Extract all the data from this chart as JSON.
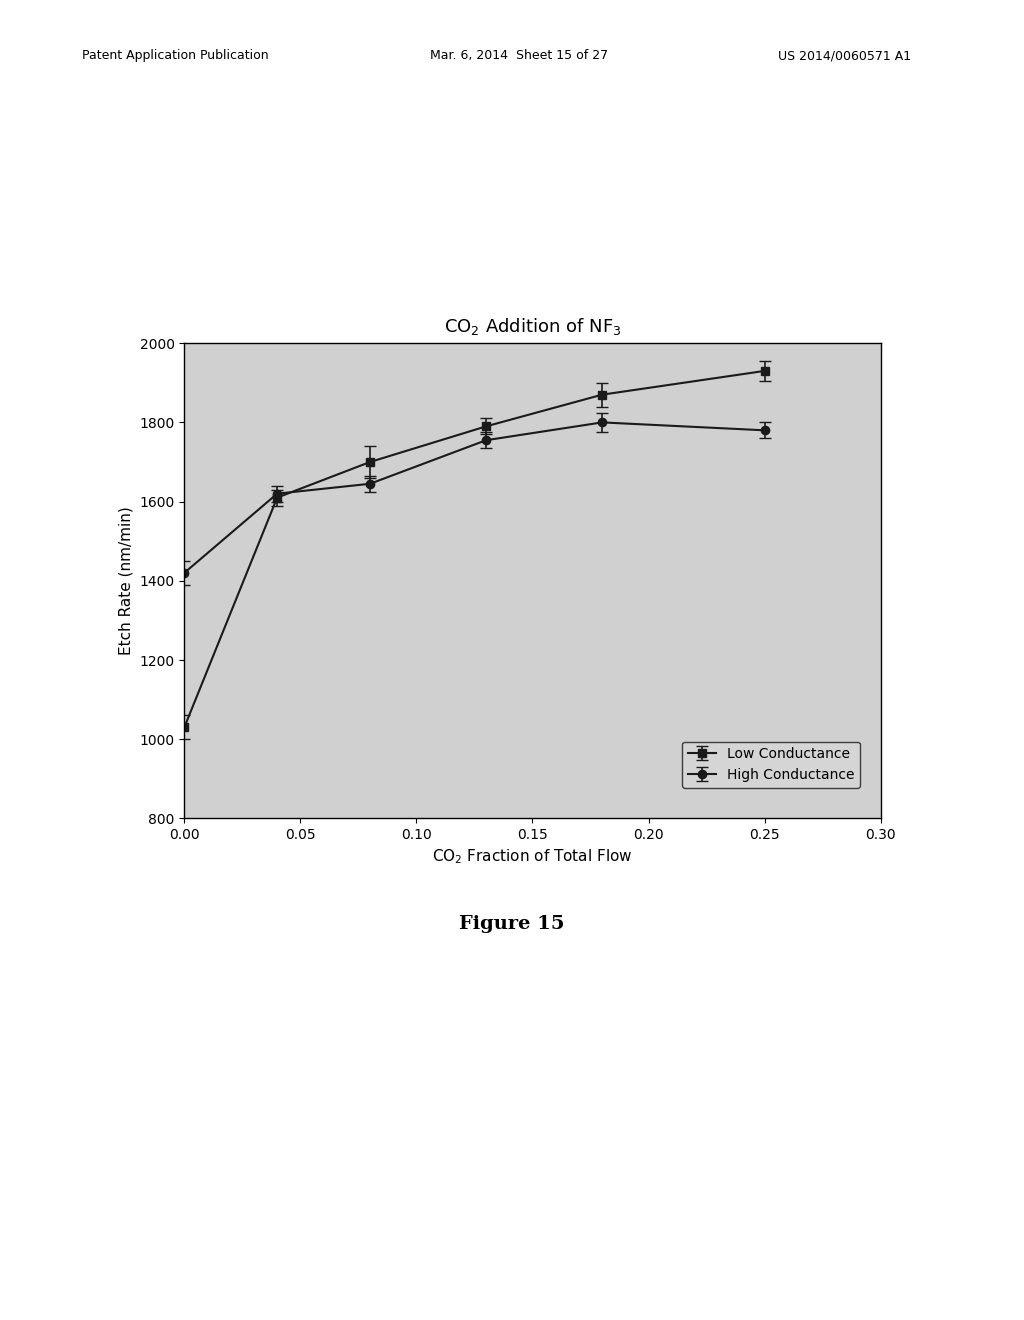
{
  "title": "CO$_2$ Addition of NF$_3$",
  "xlabel": "CO$_2$ Fraction of Total Flow",
  "ylabel": "Etch Rate (nm/min)",
  "xlim": [
    0,
    0.3
  ],
  "ylim": [
    800,
    2000
  ],
  "xticks": [
    0,
    0.05,
    0.1,
    0.15,
    0.2,
    0.25,
    0.3
  ],
  "yticks": [
    800,
    1000,
    1200,
    1400,
    1600,
    1800,
    2000
  ],
  "low_conductance_x": [
    0.0,
    0.04,
    0.08,
    0.13,
    0.18,
    0.25
  ],
  "low_conductance_y": [
    1030,
    1610,
    1700,
    1790,
    1870,
    1930
  ],
  "low_conductance_yerr": [
    30,
    20,
    40,
    20,
    30,
    25
  ],
  "high_conductance_x": [
    0.0,
    0.04,
    0.08,
    0.13,
    0.18,
    0.25
  ],
  "high_conductance_y": [
    1420,
    1620,
    1645,
    1755,
    1800,
    1780
  ],
  "high_conductance_yerr": [
    30,
    20,
    20,
    20,
    25,
    20
  ],
  "low_conductance_label": "Low Conductance",
  "high_conductance_label": "High Conductance",
  "figure_label": "Figure 15",
  "plot_area_bg": "#d0d0d0",
  "line_color": "#1a1a1a",
  "title_fontsize": 13,
  "label_fontsize": 11,
  "tick_fontsize": 10,
  "legend_fontsize": 10,
  "figure_label_fontsize": 14
}
